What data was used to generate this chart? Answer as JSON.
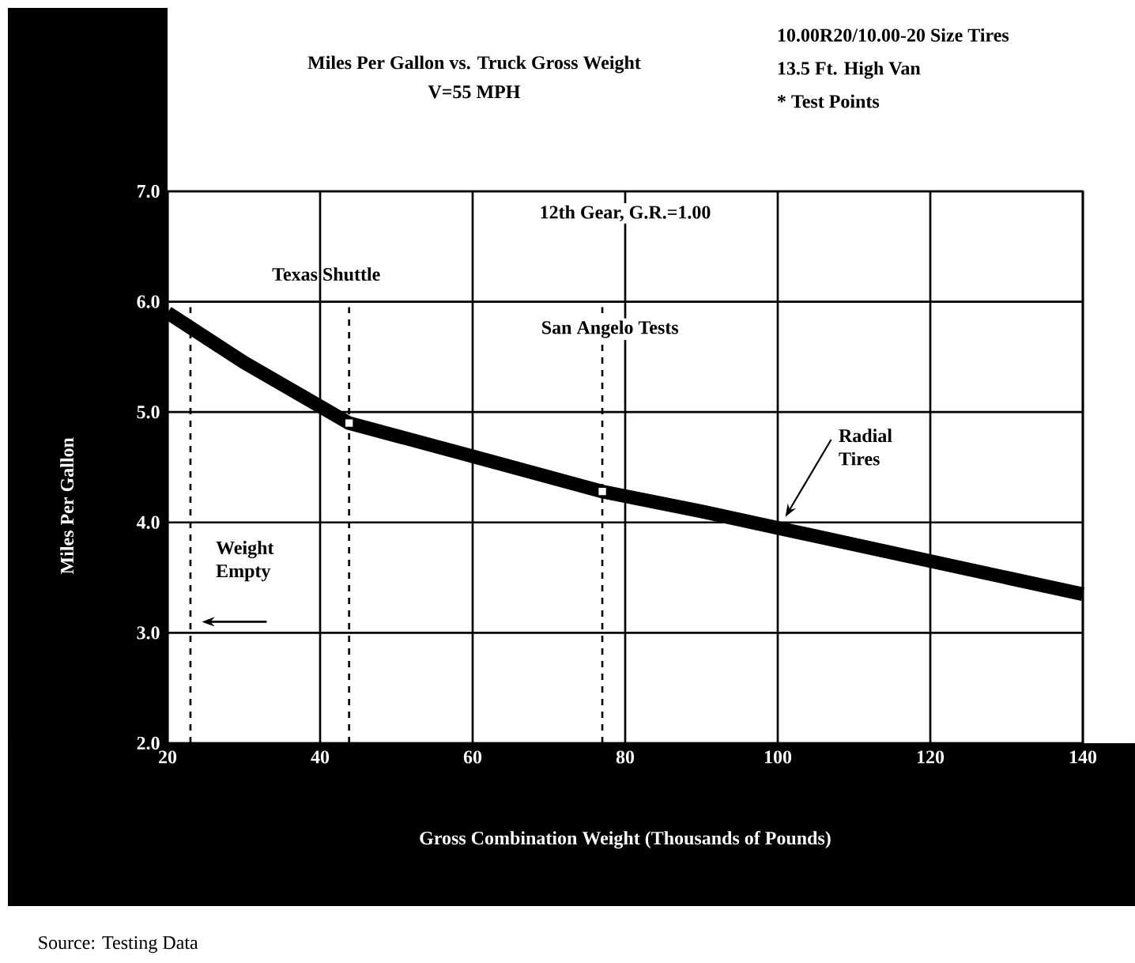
{
  "chart_data": {
    "type": "line",
    "title": "Miles Per Gallon vs. Truck Gross Weight",
    "subtitle": "V=55 MPH",
    "xlabel": "Gross Combination Weight (Thousands of Pounds)",
    "ylabel": "Miles Per Gallon",
    "annotations": [
      "10.00R20/10.00-20 Size Tires",
      "13.5 Ft. High Van",
      "* Test Points",
      "12th Gear, G.R.=1.00",
      {
        "text": "Radial Tires",
        "x": 101,
        "y": 4.05
      },
      "Source: Testing Data"
    ],
    "xlim": [
      20,
      140
    ],
    "ylim": [
      2,
      7
    ],
    "xticks": [
      20,
      40,
      60,
      80,
      100,
      120,
      140
    ],
    "yticks": [
      {
        "value": 2,
        "label": "2.0"
      },
      {
        "value": 3,
        "label": "3.0"
      },
      {
        "value": 4,
        "label": "4.0"
      },
      {
        "value": 5,
        "label": "5.0"
      },
      {
        "value": 6,
        "label": "6.0"
      },
      {
        "value": 7,
        "label": "7.0"
      }
    ],
    "grid": true,
    "series": [
      {
        "color": "#000000",
        "x": [
          20,
          30,
          43.8,
          60,
          77,
          90,
          100,
          120,
          140
        ],
        "values": [
          5.9,
          5.45,
          4.9,
          4.6,
          4.28,
          4.1,
          3.95,
          3.65,
          3.35
        ]
      },
      {
        "type": "scatter",
        "color": "#ffffff",
        "marker": "square",
        "x": [
          43.8,
          77
        ],
        "values": [
          4.9,
          4.28
        ]
      }
    ],
    "ref_lines": [
      {
        "axis": "x",
        "value": 23,
        "label": "Weight Empty",
        "line_style": "dashed",
        "color": "#000000"
      },
      {
        "axis": "x",
        "value": 43.8,
        "label": "Texas Shuttle",
        "line_style": "dashed",
        "color": "#000000"
      },
      {
        "axis": "x",
        "value": 77,
        "label": "San Angelo Tests",
        "line_style": "dashed",
        "color": "#000000"
      }
    ]
  }
}
